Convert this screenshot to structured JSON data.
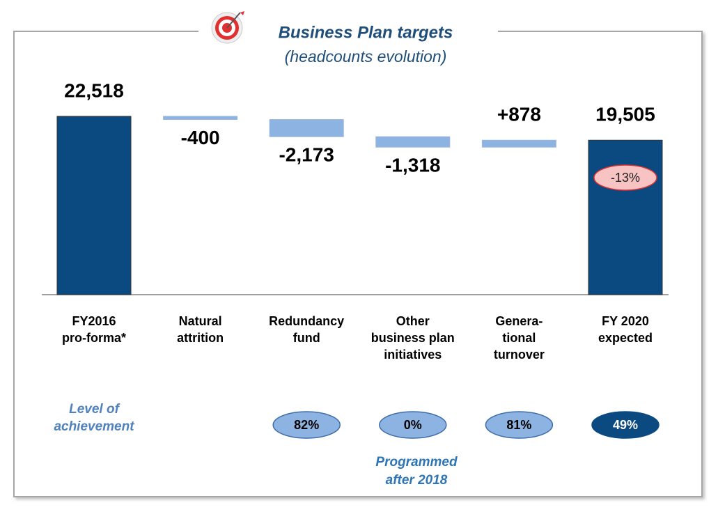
{
  "chart_data": {
    "type": "waterfall",
    "title": "Business Plan targets",
    "subtitle": "(headcounts evolution)",
    "categories": [
      [
        "FY2016",
        "pro-forma*"
      ],
      [
        "Natural",
        "attrition"
      ],
      [
        "Redundancy",
        "fund"
      ],
      [
        "Other",
        "business plan",
        "initiatives"
      ],
      [
        "Genera-",
        "tional",
        "turnover"
      ],
      [
        "FY 2020",
        "expected"
      ]
    ],
    "values": [
      22518,
      -400,
      -2173,
      -1318,
      878,
      19505
    ],
    "value_labels": [
      "22,518",
      "-400",
      "-2,173",
      "-1,318",
      "+878",
      "19,505"
    ],
    "totals": [
      true,
      false,
      false,
      false,
      false,
      true
    ],
    "total_color": "#0b4a80",
    "delta_color": "#8db3e2",
    "change_badge": "-13%",
    "achievement": {
      "label": [
        "Level of",
        "achievement"
      ],
      "values": [
        null,
        null,
        82,
        0,
        81,
        49
      ],
      "value_labels": [
        null,
        null,
        "82%",
        "0%",
        "81%",
        "49%"
      ]
    },
    "note": [
      "Programmed",
      "after 2018"
    ]
  }
}
